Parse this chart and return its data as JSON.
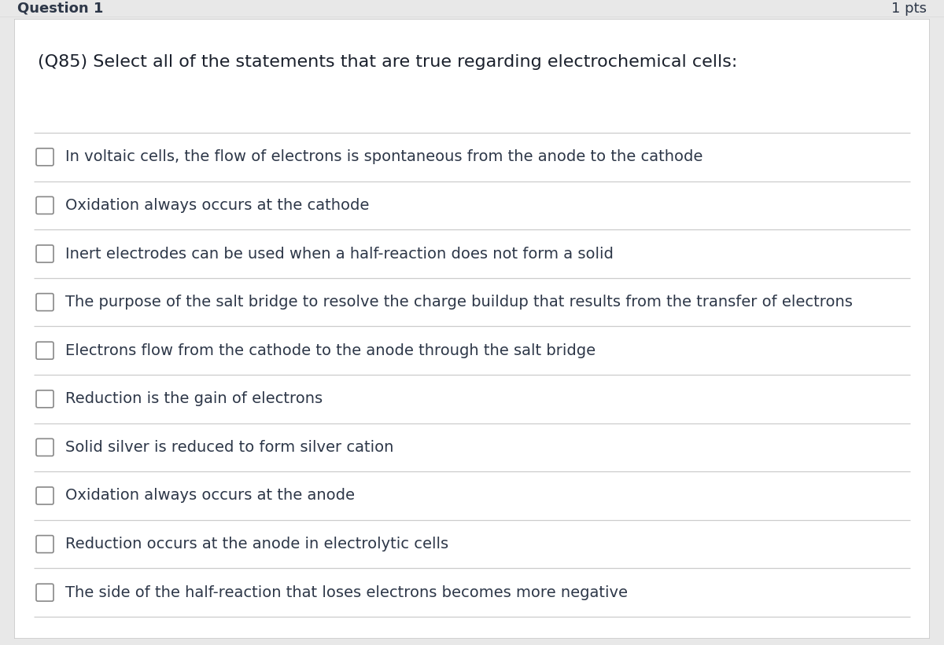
{
  "title": "(Q85) Select all of the statements that are true regarding electrochemical cells:",
  "options": [
    "In voltaic cells, the flow of electrons is spontaneous from the anode to the cathode",
    "Oxidation always occurs at the cathode",
    "Inert electrodes can be used when a half-reaction does not form a solid",
    "The purpose of the salt bridge to resolve the charge buildup that results from the transfer of electrons",
    "Electrons flow from the cathode to the anode through the salt bridge",
    "Reduction is the gain of electrons",
    "Solid silver is reduced to form silver cation",
    "Oxidation always occurs at the anode",
    "Reduction occurs at the anode in electrolytic cells",
    "The side of the half-reaction that loses electrons becomes more negative"
  ],
  "bg_color": "#ffffff",
  "outer_border_color": "#c8c8c8",
  "text_color": "#2d3748",
  "title_color": "#1a202c",
  "line_color": "#cccccc",
  "checkbox_edge_color": "#888888",
  "title_fontsize": 16,
  "option_fontsize": 14,
  "header_bg": "#e8e8e8",
  "header_text": "Question 1",
  "header_pts": "1 pts",
  "header_fontsize": 13,
  "fig_width": 12.0,
  "fig_height": 8.21,
  "dpi": 100
}
